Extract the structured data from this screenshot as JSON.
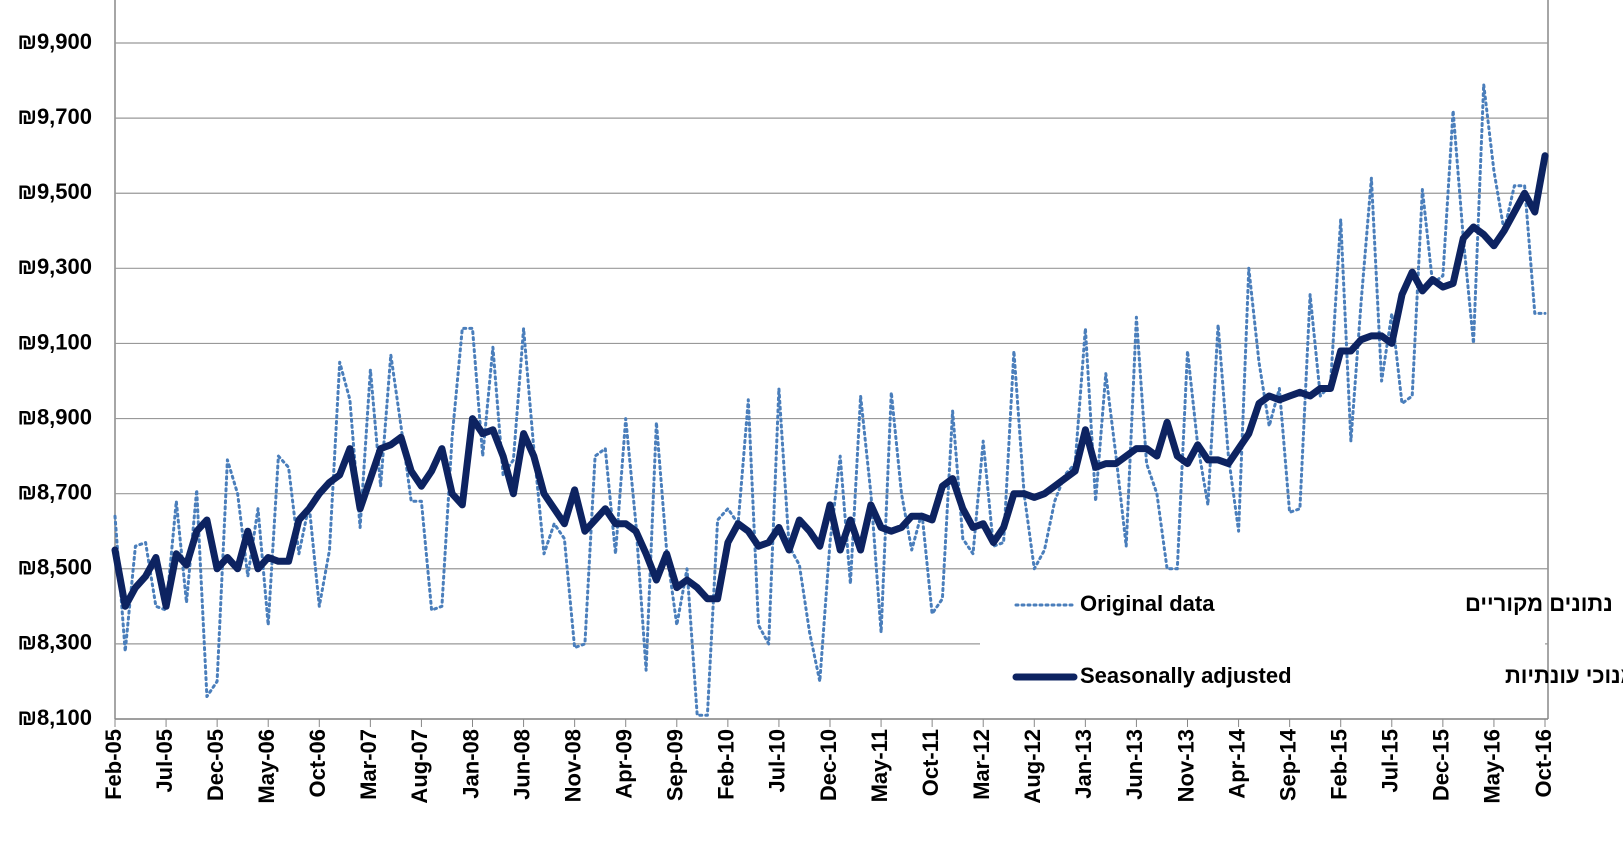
{
  "chart_data": {
    "type": "line",
    "categories": [
      "Feb-05",
      null,
      null,
      null,
      null,
      "Jul-05",
      null,
      null,
      null,
      null,
      "Dec-05",
      null,
      null,
      null,
      null,
      "May-06",
      null,
      null,
      null,
      null,
      "Oct-06",
      null,
      null,
      null,
      null,
      "Mar-07",
      null,
      null,
      null,
      null,
      "Aug-07",
      null,
      null,
      null,
      null,
      "Jan-08",
      null,
      null,
      null,
      null,
      "Jun-08",
      null,
      null,
      null,
      null,
      "Nov-08",
      null,
      null,
      null,
      null,
      "Apr-09",
      null,
      null,
      null,
      null,
      "Sep-09",
      null,
      null,
      null,
      null,
      "Feb-10",
      null,
      null,
      null,
      null,
      "Jul-10",
      null,
      null,
      null,
      null,
      "Dec-10",
      null,
      null,
      null,
      null,
      "May-11",
      null,
      null,
      null,
      null,
      "Oct-11",
      null,
      null,
      null,
      null,
      "Mar-12",
      null,
      null,
      null,
      null,
      "Aug-12",
      null,
      null,
      null,
      null,
      "Jan-13",
      null,
      null,
      null,
      null,
      "Jun-13",
      null,
      null,
      null,
      null,
      "Nov-13",
      null,
      null,
      null,
      null,
      "Apr-14",
      null,
      null,
      null,
      null,
      "Sep-14",
      null,
      null,
      null,
      null,
      "Feb-15",
      null,
      null,
      null,
      null,
      "Jul-15",
      null,
      null,
      null,
      null,
      "Dec-15",
      null,
      null,
      null,
      null,
      "May-16",
      null,
      null,
      null,
      null,
      "Oct-16"
    ],
    "series": [
      {
        "name": "Original data",
        "label_he": "נתונים מקוריים",
        "color": "#4a7ebb",
        "style": "dotted",
        "values": [
          8640,
          8280,
          8560,
          8570,
          8400,
          8390,
          8680,
          8410,
          8710,
          8160,
          8200,
          8790,
          8700,
          8480,
          8660,
          8350,
          8800,
          8770,
          8540,
          8670,
          8400,
          8550,
          9050,
          8950,
          8610,
          9030,
          8720,
          9070,
          8880,
          8680,
          8680,
          8390,
          8400,
          8850,
          9140,
          9140,
          8800,
          9090,
          8750,
          8790,
          9140,
          8820,
          8540,
          8620,
          8580,
          8290,
          8300,
          8800,
          8820,
          8540,
          8900,
          8620,
          8230,
          8890,
          8550,
          8350,
          8500,
          8110,
          8110,
          8630,
          8660,
          8620,
          8950,
          8350,
          8300,
          8980,
          8560,
          8510,
          8330,
          8200,
          8570,
          8800,
          8460,
          8960,
          8700,
          8330,
          8970,
          8700,
          8550,
          8650,
          8380,
          8420,
          8920,
          8580,
          8540,
          8840,
          8560,
          8570,
          9080,
          8700,
          8500,
          8550,
          8680,
          8750,
          8780,
          9140,
          8680,
          9020,
          8800,
          8560,
          9170,
          8780,
          8700,
          8500,
          8500,
          9080,
          8830,
          8670,
          9150,
          8800,
          8600,
          9300,
          9050,
          8880,
          8980,
          8650,
          8660,
          9230,
          8960,
          8990,
          9430,
          8840,
          9210,
          9540,
          9000,
          9180,
          8940,
          8960,
          9510,
          9260,
          9280,
          9720,
          9380,
          9100,
          9790,
          9560,
          9400,
          9520,
          9520,
          9180,
          9180
        ]
      },
      {
        "name": "Seasonally adjusted",
        "label_he": "מנוכי עונתיות",
        "color": "#0d2361",
        "style": "solid",
        "values": [
          8550,
          8400,
          8450,
          8480,
          8530,
          8400,
          8540,
          8510,
          8600,
          8630,
          8500,
          8530,
          8500,
          8600,
          8500,
          8530,
          8520,
          8520,
          8630,
          8660,
          8700,
          8730,
          8750,
          8820,
          8660,
          8740,
          8820,
          8830,
          8850,
          8760,
          8720,
          8760,
          8820,
          8700,
          8670,
          8900,
          8860,
          8870,
          8800,
          8700,
          8860,
          8800,
          8700,
          8660,
          8620,
          8710,
          8600,
          8630,
          8660,
          8620,
          8620,
          8600,
          8540,
          8470,
          8540,
          8450,
          8470,
          8450,
          8420,
          8420,
          8570,
          8620,
          8600,
          8560,
          8570,
          8610,
          8550,
          8630,
          8600,
          8560,
          8670,
          8550,
          8630,
          8550,
          8670,
          8610,
          8600,
          8610,
          8640,
          8640,
          8630,
          8720,
          8740,
          8660,
          8610,
          8620,
          8570,
          8610,
          8700,
          8700,
          8690,
          8700,
          8720,
          8740,
          8760,
          8870,
          8770,
          8780,
          8780,
          8800,
          8820,
          8820,
          8800,
          8890,
          8800,
          8780,
          8830,
          8790,
          8790,
          8780,
          8820,
          8860,
          8940,
          8960,
          8950,
          8960,
          8970,
          8960,
          8980,
          8980,
          9080,
          9080,
          9110,
          9120,
          9120,
          9100,
          9230,
          9290,
          9240,
          9270,
          9250,
          9260,
          9380,
          9410,
          9390,
          9360,
          9400,
          9450,
          9500,
          9450,
          9600
        ]
      }
    ],
    "ylim": [
      8100,
      9900
    ],
    "yticks": [
      {
        "value": 8100,
        "label": "₪8,100"
      },
      {
        "value": 8300,
        "label": "₪8,300"
      },
      {
        "value": 8500,
        "label": "₪8,500"
      },
      {
        "value": 8700,
        "label": "₪8,700"
      },
      {
        "value": 8900,
        "label": "₪8,900"
      },
      {
        "value": 9100,
        "label": "₪9,100"
      },
      {
        "value": 9300,
        "label": "₪9,300"
      },
      {
        "value": 9500,
        "label": "₪9,500"
      },
      {
        "value": 9700,
        "label": "₪9,700"
      },
      {
        "value": 9900,
        "label": "₪9,900"
      }
    ],
    "grid": true,
    "legend": "lower right"
  }
}
